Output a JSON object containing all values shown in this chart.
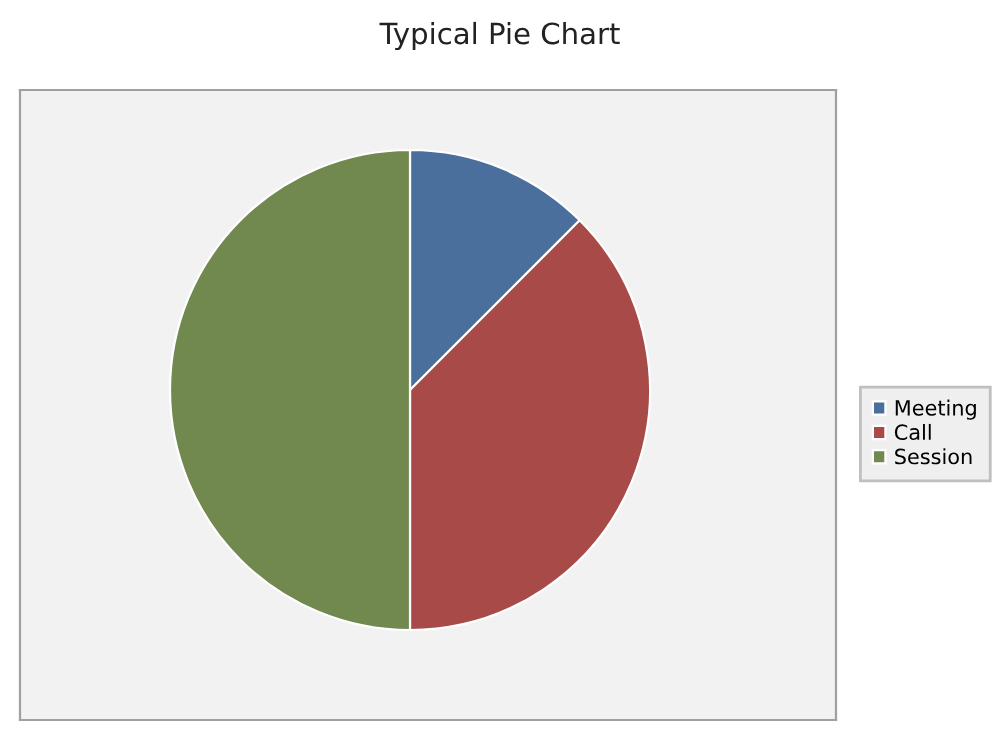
{
  "chart_data": {
    "type": "pie",
    "title": "Typical Pie Chart",
    "categories": [
      "Meeting",
      "Call",
      "Session"
    ],
    "values": [
      12.5,
      37.5,
      50
    ],
    "colors": [
      "#4a6f9c",
      "#a84a48",
      "#71884f"
    ],
    "legend": "right"
  }
}
